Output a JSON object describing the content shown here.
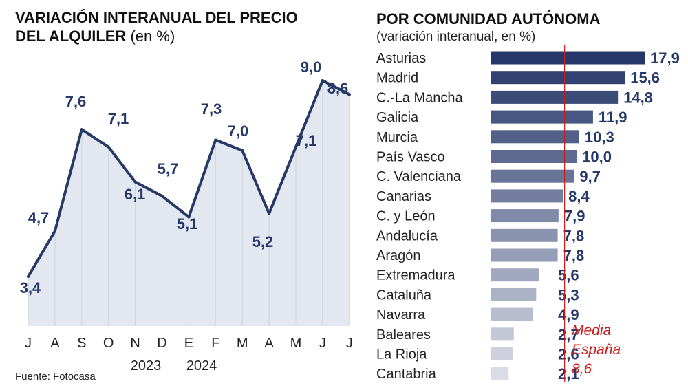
{
  "left_panel": {
    "title_line1": "VARIACIÓN INTERANUAL DEL PRECIO",
    "title_line2": "DEL ALQUILER",
    "title_unit": "(en %)",
    "source": "Fuente: Fotocasa"
  },
  "right_panel": {
    "title": "POR COMUNIDAD AUTÓNOMA",
    "subtitle": "(variación interanual, en %)",
    "mean_label": [
      "Media",
      "España",
      "8,6"
    ]
  },
  "colors": {
    "line": "#263a66",
    "area": "#e3e7ef",
    "grid": "#cfd3da",
    "bar_dark": "#26386a",
    "bar_light": "#d9dbe5",
    "mean": "#cc1b1b",
    "label": "#26386a"
  },
  "chart_data": [
    {
      "type": "area",
      "title": "VARIACIÓN INTERANUAL DEL PRECIO DEL ALQUILER (en %)",
      "categories": [
        "J",
        "A",
        "S",
        "O",
        "N",
        "D",
        "E",
        "F",
        "M",
        "A",
        "M",
        "J",
        "J"
      ],
      "year_labels": [
        "2023",
        "2024"
      ],
      "values": [
        3.4,
        4.7,
        7.6,
        7.1,
        6.1,
        5.7,
        5.1,
        7.3,
        7.0,
        5.2,
        7.1,
        9.0,
        8.6
      ],
      "value_labels": [
        "3,4",
        "4,7",
        "7,6",
        "7,1",
        "6,1",
        "5,7",
        "5,1",
        "7,3",
        "7,0",
        "5,2",
        "7,1",
        "9,0",
        "8,6"
      ],
      "ylim": [
        0,
        10
      ],
      "grid": "vertical"
    },
    {
      "type": "bar",
      "orientation": "horizontal",
      "title": "POR COMUNIDAD AUTÓNOMA",
      "subtitle": "(variación interanual, en %)",
      "categories": [
        "Asturias",
        "Madrid",
        "C.-La Mancha",
        "Galicia",
        "Murcia",
        "País Vasco",
        "C. Valenciana",
        "Canarias",
        "C. y León",
        "Andalucía",
        "Aragón",
        "Extremadura",
        "Cataluña",
        "Navarra",
        "Baleares",
        "La Rioja",
        "Cantabria"
      ],
      "values": [
        17.9,
        15.6,
        14.8,
        11.9,
        10.3,
        10.0,
        9.7,
        8.4,
        7.9,
        7.8,
        7.8,
        5.6,
        5.3,
        4.9,
        2.7,
        2.6,
        2.1
      ],
      "value_labels": [
        "17,9",
        "15,6",
        "14,8",
        "11,9",
        "10,3",
        "10,0",
        "9,7",
        "8,4",
        "7,9",
        "7,8",
        "7,8",
        "5,6",
        "5,3",
        "4,9",
        "2,7",
        "2,6",
        "2,1"
      ],
      "reference_line": {
        "value": 8.6,
        "label": "Media España 8,6"
      },
      "xlim": [
        0,
        17.9
      ]
    }
  ]
}
